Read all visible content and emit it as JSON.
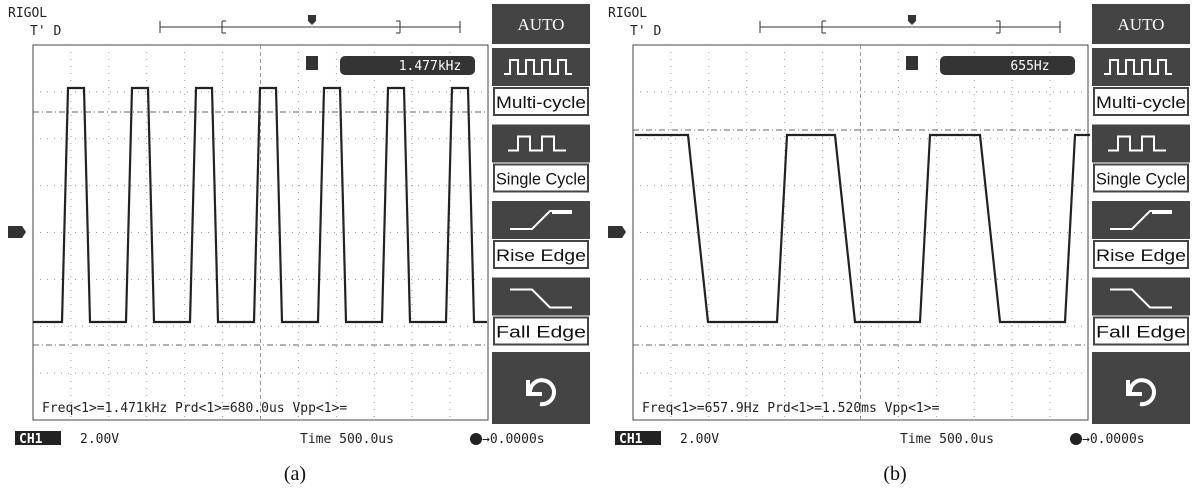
{
  "panels": [
    {
      "brand": "RIGOL",
      "status": "T' D",
      "freq_display": "1.477kHz",
      "menu": {
        "title": "AUTO",
        "items": [
          "Multi-cycle",
          "Single Cycle",
          "Rise Edge",
          "Fall Edge"
        ]
      },
      "measurements": "Freq<1>=1.471kHz Prd<1>=680.0us Vpp<1>=",
      "footer": {
        "channel": "CH1",
        "volts": "2.00V",
        "time": "Time 500.0us",
        "trigger": "→0.0000s"
      },
      "caption": "(a)"
    },
    {
      "brand": "RIGOL",
      "status": "T' D",
      "freq_display": "655Hz",
      "menu": {
        "title": "AUTO",
        "items": [
          "Multi-cycle",
          "Single Cycle",
          "Rise Edge",
          "Fall Edge"
        ]
      },
      "measurements": "Freq<1>=657.9Hz Prd<1>=1.520ms Vpp<1>=",
      "footer": {
        "channel": "CH1",
        "volts": "2.00V",
        "time": "Time 500.0us",
        "trigger": "→0.0000s"
      },
      "caption": "(b)"
    }
  ]
}
